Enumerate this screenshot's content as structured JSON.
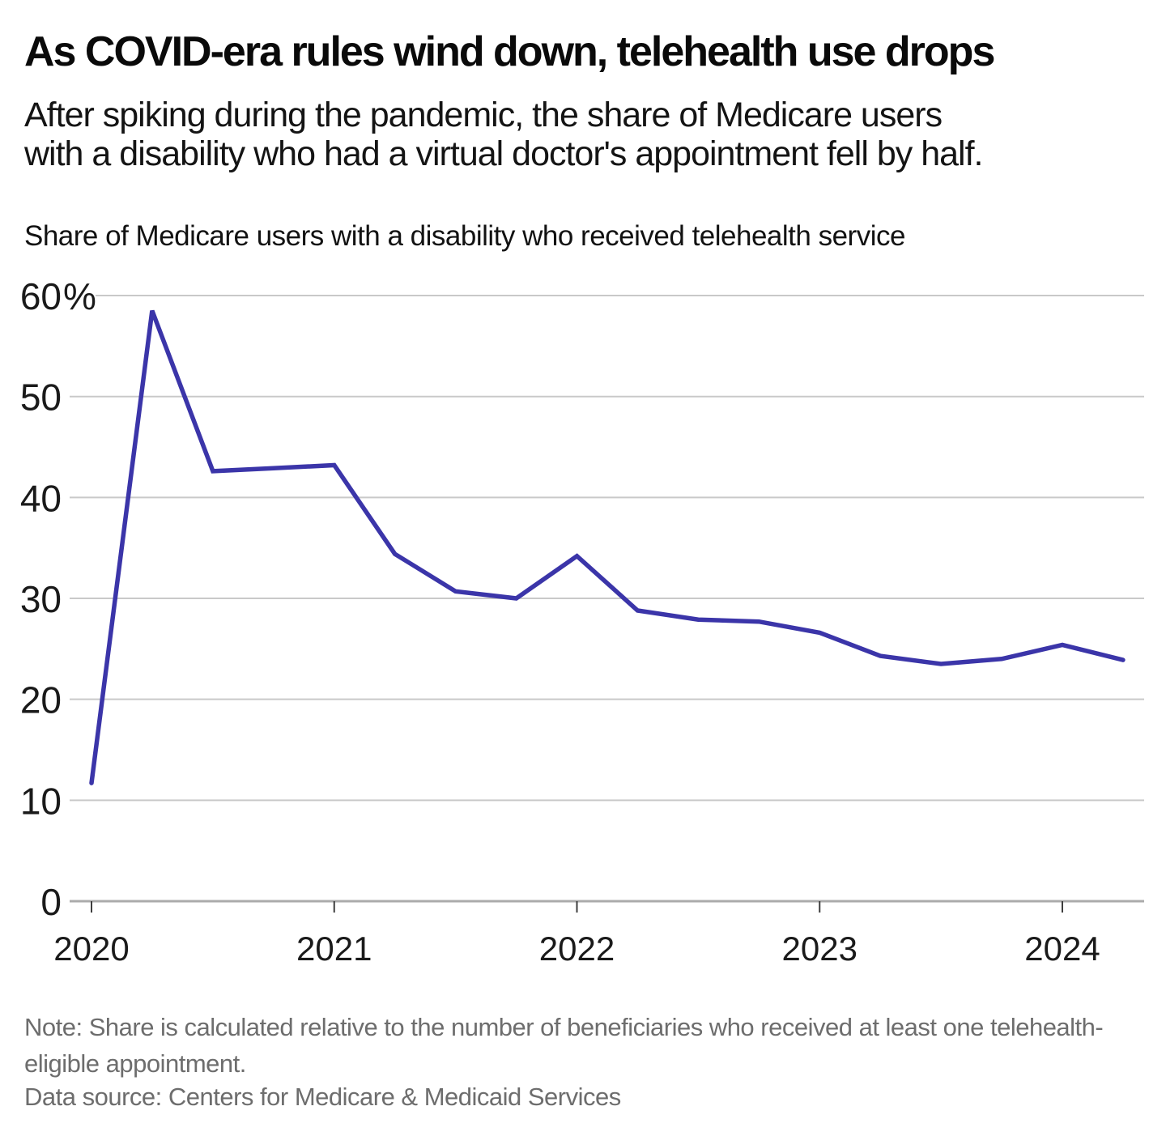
{
  "header": {
    "title": "As COVID-era rules wind down, telehealth use drops",
    "subtitle_lines": [
      "After spiking during the pandemic, the share of Medicare users",
      "with a disability who had a virtual doctor's appointment fell by half."
    ]
  },
  "chart_data": {
    "type": "line",
    "title": "Share of Medicare users with a disability who received telehealth service",
    "categories": [
      "2020 Q1",
      "2020 Q2",
      "2020 Q3",
      "2020 Q4",
      "2021 Q1",
      "2021 Q2",
      "2021 Q3",
      "2021 Q4",
      "2022 Q1",
      "2022 Q2",
      "2022 Q3",
      "2022 Q4",
      "2023 Q1",
      "2023 Q2",
      "2023 Q3",
      "2023 Q4",
      "2024 Q1",
      "2024 Q2"
    ],
    "x": [
      2020,
      2020.25,
      2020.5,
      2020.75,
      2021,
      2021.25,
      2021.5,
      2021.75,
      2022,
      2022.25,
      2022.5,
      2022.75,
      2023,
      2023.25,
      2023.5,
      2023.75,
      2024,
      2024.25
    ],
    "series": [
      {
        "name": "Share of Medicare users with a disability who received telehealth service",
        "values": [
          11.7,
          58.5,
          42.6,
          42.9,
          43.2,
          34.4,
          30.7,
          30.0,
          34.2,
          28.8,
          27.9,
          27.7,
          26.6,
          24.3,
          23.5,
          24.0,
          25.4,
          23.9
        ]
      }
    ],
    "xlabel": "",
    "ylabel": "",
    "x_tick_years": [
      2020,
      2021,
      2022,
      2023,
      2024
    ],
    "x_tick_labels": [
      "2020",
      "2021",
      "2022",
      "2023",
      "2024"
    ],
    "y_ticks": [
      0,
      10,
      20,
      30,
      40,
      50,
      60
    ],
    "y_tick_labels": [
      "0",
      "10",
      "20",
      "30",
      "40",
      "50",
      "60%"
    ],
    "ylim": [
      0,
      62.8
    ],
    "xlim": [
      2019.91,
      2024.33
    ],
    "grid": "horizontal",
    "legend": "none",
    "line_color": "#3b35a9",
    "grid_color": "#c9c9c9",
    "axis_color": "#ababab",
    "tick_color": "#3d3d3d",
    "label_color": "#1a1a1a"
  },
  "footer": {
    "note": "Note: Share is calculated relative to the number of beneficiaries who received at least one telehealth-eligible appointment.",
    "source": "Data source: Centers for Medicare & Medicaid Services"
  }
}
